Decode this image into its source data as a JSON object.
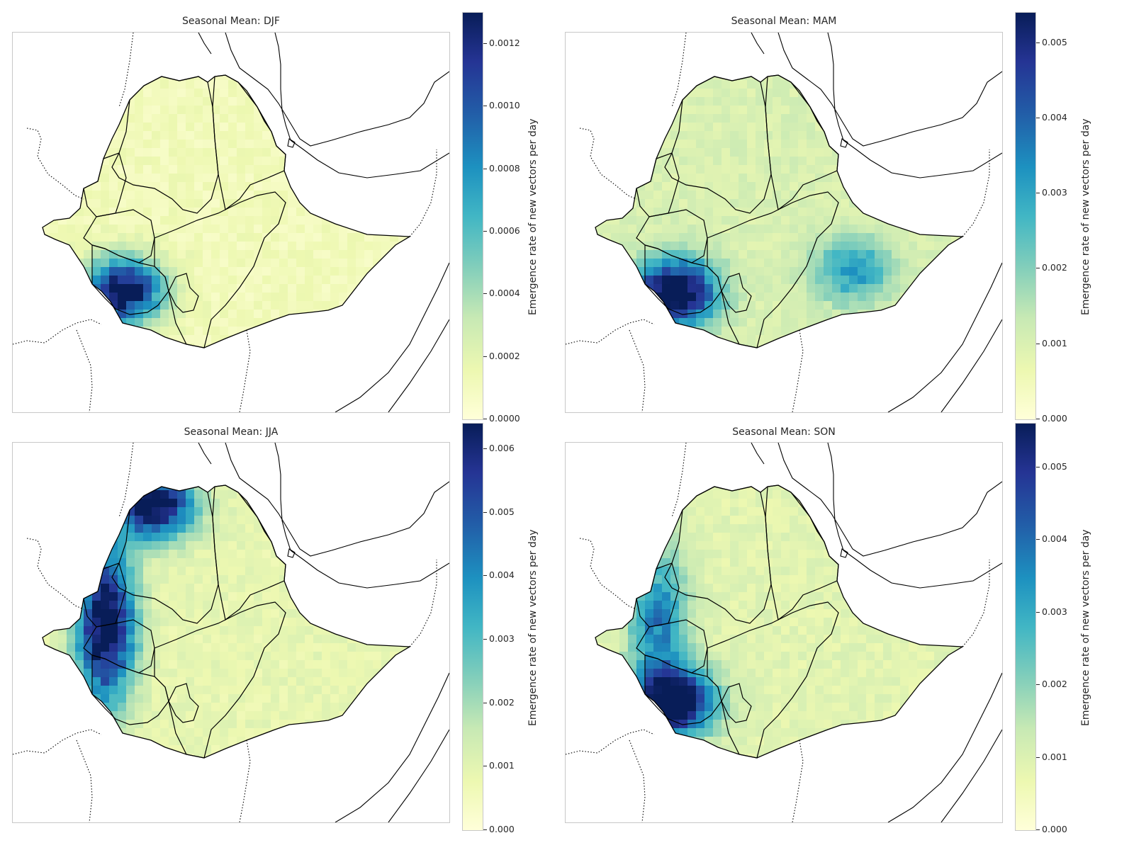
{
  "chart_data": [
    {
      "type": "heatmap",
      "title": "Seasonal Mean: DJF",
      "colorbar_label": "Emergence rate of new vectors per day",
      "colorbar_range": [
        0,
        0.0013
      ],
      "colorbar_ticks": [
        "0.0000",
        "0.0002",
        "0.0004",
        "0.0006",
        "0.0008",
        "0.0010",
        "0.0012"
      ],
      "tick_values": [
        0,
        0.0002,
        0.0004,
        0.0006,
        0.0008,
        0.001,
        0.0012
      ],
      "hotspots": [
        {
          "region": "southwest",
          "level": 1.0
        }
      ],
      "background_level": 0.05
    },
    {
      "type": "heatmap",
      "title": "Seasonal Mean: MAM",
      "colorbar_label": "Emergence rate of new vectors per day",
      "colorbar_range": [
        0,
        0.0054
      ],
      "colorbar_ticks": [
        "0.000",
        "0.001",
        "0.002",
        "0.003",
        "0.004",
        "0.005"
      ],
      "tick_values": [
        0,
        0.001,
        0.002,
        0.003,
        0.004,
        0.005
      ],
      "hotspots": [
        {
          "region": "southwest",
          "level": 1.0
        },
        {
          "region": "southeast",
          "level": 0.4
        }
      ],
      "background_level": 0.15
    },
    {
      "type": "heatmap",
      "title": "Seasonal Mean: JJA",
      "colorbar_label": "Emergence rate of new vectors per day",
      "colorbar_range": [
        0,
        0.0064
      ],
      "colorbar_ticks": [
        "0.000",
        "0.001",
        "0.002",
        "0.003",
        "0.004",
        "0.005",
        "0.006"
      ],
      "tick_values": [
        0,
        0.001,
        0.002,
        0.003,
        0.004,
        0.005,
        0.006
      ],
      "hotspots": [
        {
          "region": "west",
          "level": 1.0
        },
        {
          "region": "northwest",
          "level": 0.95
        }
      ],
      "background_level": 0.1
    },
    {
      "type": "heatmap",
      "title": "Seasonal Mean: SON",
      "colorbar_label": "Emergence rate of new vectors per day",
      "colorbar_range": [
        0,
        0.0056
      ],
      "colorbar_ticks": [
        "0.000",
        "0.001",
        "0.002",
        "0.003",
        "0.004",
        "0.005"
      ],
      "tick_values": [
        0,
        0.001,
        0.002,
        0.003,
        0.004,
        0.005
      ],
      "hotspots": [
        {
          "region": "southwest",
          "level": 1.0
        },
        {
          "region": "west",
          "level": 0.5
        }
      ],
      "background_level": 0.12
    }
  ],
  "colors": {
    "cmap_low": "#ffffd9",
    "cmap_mid": "#41b6c4",
    "cmap_high": "#081d58",
    "border": "#000000",
    "frame": "#c8c8c8"
  }
}
